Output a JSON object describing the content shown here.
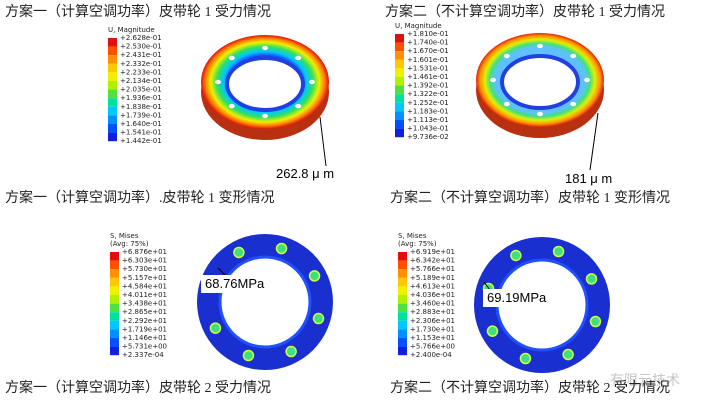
{
  "top_captions": [
    "方案一（计算空调功率）皮带轮 1 受力情况",
    "方案二（不计算空调功率）皮带轮 1 受力情况"
  ],
  "panels": [
    {
      "legend_title": "U, Magnitude",
      "legend_values": [
        "+2.628e-01",
        "+2.530e-01",
        "+2.431e-01",
        "+2.332e-01",
        "+2.233e-01",
        "+2.134e-01",
        "+2.035e-01",
        "+1.936e-01",
        "+1.838e-01",
        "+1.739e-01",
        "+1.640e-01",
        "+1.541e-01",
        "+1.442e-01"
      ],
      "annotation": "262.8 μ m",
      "caption": "方案一（计算空调功率）.皮带轮 1 变形情况"
    },
    {
      "legend_title": "U, Magnitude",
      "legend_values": [
        "+1.810e-01",
        "+1.740e-01",
        "+1.670e-01",
        "+1.601e-01",
        "+1.531e-01",
        "+1.461e-01",
        "+1.392e-01",
        "+1.322e-01",
        "+1.252e-01",
        "+1.183e-01",
        "+1.113e-01",
        "+1.043e-01",
        "+9.736e-02"
      ],
      "annotation": "181 μ m",
      "caption": "方案二（不计算空调功率）皮带轮 1 变形情况"
    },
    {
      "legend_title": "S, Mises",
      "legend_subtitle": "(Avg: 75%)",
      "legend_values": [
        "+6.876e+01",
        "+6.303e+01",
        "+5.730e+01",
        "+5.157e+01",
        "+4.584e+01",
        "+4.011e+01",
        "+3.438e+01",
        "+2.865e+01",
        "+2.292e+01",
        "+1.719e+01",
        "+1.146e+01",
        "+5.731e+00",
        "+2.337e-04"
      ],
      "annotation": "68.76MPa",
      "caption": "方案一（计算空调功率）皮带轮 2 受力情况"
    },
    {
      "legend_title": "S, Mises",
      "legend_subtitle": "(Avg: 75%)",
      "legend_values": [
        "+6.919e+01",
        "+6.342e+01",
        "+5.766e+01",
        "+5.189e+01",
        "+4.613e+01",
        "+4.036e+01",
        "+3.460e+01",
        "+2.883e+01",
        "+2.306e+01",
        "+1.730e+01",
        "+1.153e+01",
        "+5.766e+00",
        "+2.400e-04"
      ],
      "annotation": "69.19MPa",
      "caption": "方案二（不计算空调功率）皮带轮 2 受力情况"
    }
  ],
  "watermark": "有限元技术"
}
